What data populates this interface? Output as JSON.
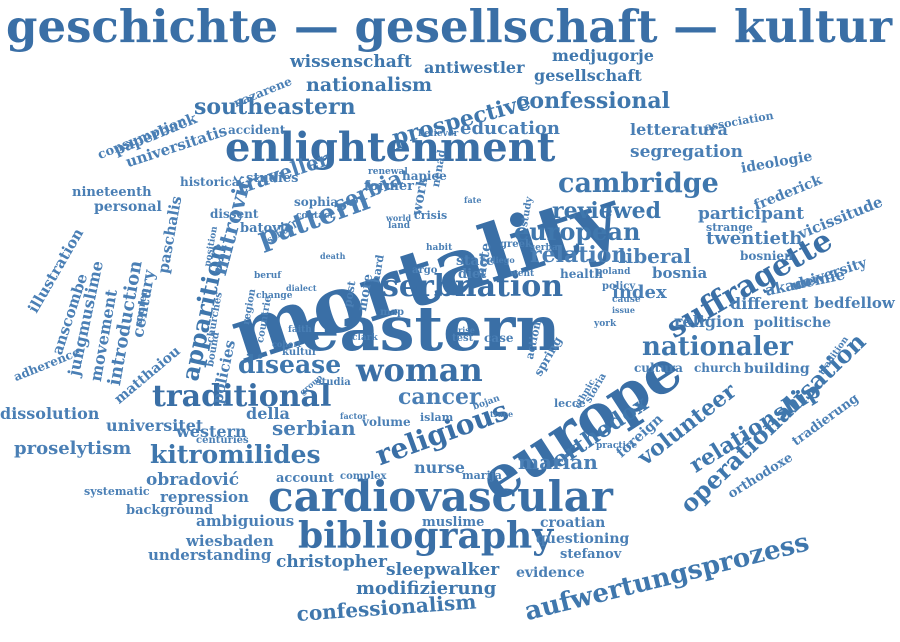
{
  "header": {
    "title": "geschichte — gesellschaft — kultur"
  },
  "cloud": {
    "words": [
      "mortality",
      "eastern",
      "europe",
      "cardiovascular",
      "enlightenment",
      "bibliography",
      "woman",
      "traditional",
      "serbnation",
      "suffragette",
      "religious",
      "cambridge",
      "apparition",
      "disease",
      "nationaler",
      "operationalisation",
      "aufwertungsprozess",
      "kitromilides",
      "relationship",
      "volunteer",
      "orthodox",
      "european",
      "reviewed",
      "confessional",
      "southeastern",
      "prospective",
      "nationalism",
      "wissenschaft",
      "antiwestler",
      "gesellschaft",
      "medjugorje",
      "confessionalism",
      "modifizierung",
      "sleepwalker",
      "christopher",
      "wiesbaden",
      "understanding",
      "ambiguious",
      "repression",
      "background",
      "obradović",
      "account",
      "proselytism",
      "dissolution",
      "universitet",
      "western",
      "serbian",
      "cancer",
      "marian",
      "nurse",
      "relation",
      "liberal",
      "index",
      "twentieth",
      "participant",
      "segregation",
      "letteratura",
      "education",
      "pattern",
      "mitrović",
      "traveller",
      "serbia",
      "studies",
      "historica",
      "universitatis",
      "paperback",
      "consumption",
      "nineteenth",
      "personal",
      "illustration",
      "anscombe",
      "jungmuslime",
      "movement",
      "introduction",
      "century",
      "paschalis",
      "matthaiou",
      "adherence",
      "policies",
      "della",
      "bosnia",
      "bosnien",
      "akademie",
      "university",
      "different",
      "bedfellow",
      "religion",
      "politische",
      "building",
      "cultura",
      "church",
      "orthodoxe",
      "tradierung",
      "foreign",
      "croatian",
      "questioning",
      "stefanov",
      "evidence",
      "muslime",
      "frederick",
      "vicissitude",
      "ideologie",
      "association",
      "strange",
      "accident",
      "nazarene",
      "systematic",
      "state",
      "diet",
      "diego",
      "former",
      "renewal",
      "hapiee",
      "sophia",
      "dissent",
      "batović",
      "school",
      "contact",
      "crisis",
      "world",
      "land",
      "argo",
      "health",
      "poland",
      "policy",
      "cause",
      "issue",
      "york",
      "clark",
      "map",
      "more",
      "post",
      "hard",
      "faith",
      "kultur",
      "cohort",
      "studia",
      "group",
      "bound",
      "countrie",
      "region",
      "beruf",
      "spuren",
      "change",
      "position",
      "death",
      "churches",
      "habit",
      "lecce",
      "storia",
      "spring",
      "action",
      "test",
      "case",
      "volume",
      "islam",
      "factor",
      "trace",
      "bojan",
      "practice",
      "marija",
      "complex",
      "centuries",
      "note",
      "work",
      "nenad",
      "believer",
      "greek",
      "serba",
      "went",
      "fate",
      "study",
      "ethnic",
      "rise",
      "tradition",
      "dialect"
    ]
  }
}
